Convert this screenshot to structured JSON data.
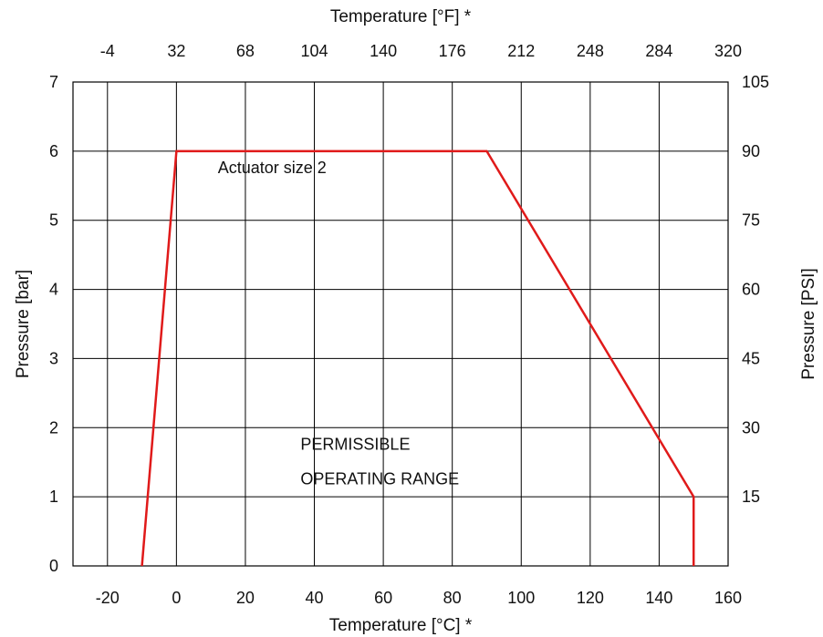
{
  "chart_data": {
    "type": "line",
    "xlabel": "Temperature [°C] *",
    "x2label": "Temperature [°F] *",
    "ylabel": "Pressure [bar]",
    "y2label": "Pressure [PSI]",
    "xlim": [
      -30,
      160
    ],
    "ylim": [
      0,
      7
    ],
    "x_ticks": [
      "-20",
      "0",
      "20",
      "40",
      "60",
      "80",
      "100",
      "120",
      "140",
      "160"
    ],
    "x2_ticks": [
      "-4",
      "32",
      "68",
      "104",
      "140",
      "176",
      "212",
      "248",
      "284",
      "320"
    ],
    "y_ticks": [
      "0",
      "1",
      "2",
      "3",
      "4",
      "5",
      "6",
      "7"
    ],
    "y2_ticks": [
      "15",
      "30",
      "45",
      "60",
      "75",
      "90",
      "105"
    ],
    "grid": true,
    "series": [
      {
        "color": "#e01a1a",
        "x": [
          -10,
          0,
          90,
          150,
          150
        ],
        "y": [
          0,
          6,
          6,
          1,
          0
        ]
      }
    ],
    "annotations": [
      {
        "text": "Actuator size 2",
        "x": 12,
        "y": 5.68
      },
      {
        "text": "PERMISSIBLE",
        "x": 36,
        "y": 1.68
      },
      {
        "text": "OPERATING RANGE",
        "x": 36,
        "y": 1.18
      }
    ]
  }
}
